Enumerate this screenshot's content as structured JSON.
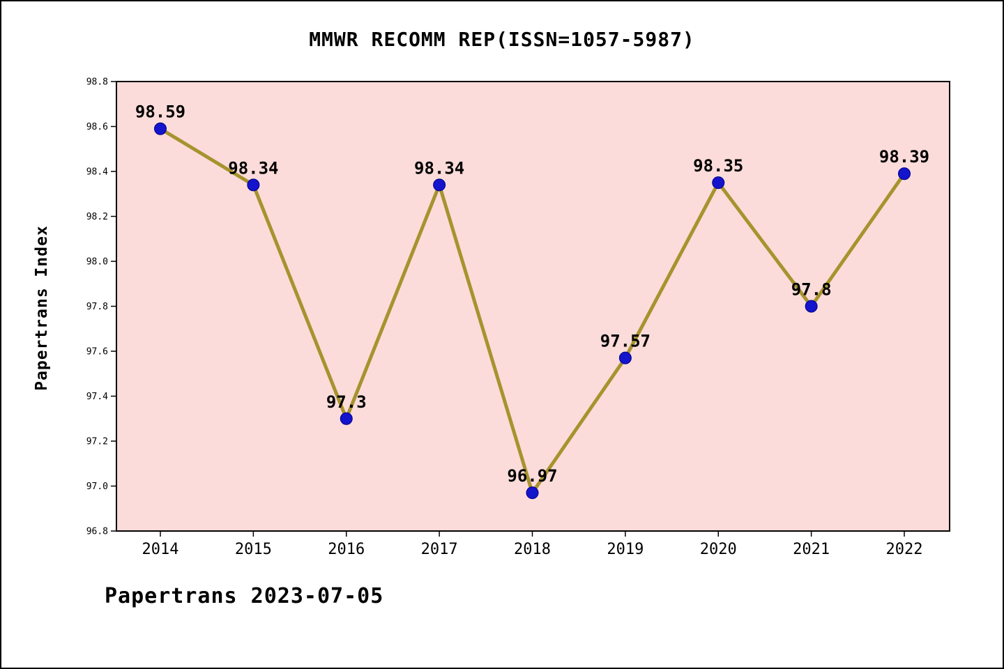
{
  "chart_data": {
    "type": "line",
    "title": "MMWR RECOMM REP(ISSN=1057-5987)",
    "ylabel": "Papertrans Index",
    "xlabel": "",
    "categories": [
      "2014",
      "2015",
      "2016",
      "2017",
      "2018",
      "2019",
      "2020",
      "2021",
      "2022"
    ],
    "values": [
      98.59,
      98.34,
      97.3,
      98.34,
      96.97,
      97.57,
      98.35,
      97.8,
      98.39
    ],
    "point_labels": [
      "98.59",
      "98.34",
      "97.3",
      "98.34",
      "96.97",
      "97.57",
      "98.35",
      "97.8",
      "98.39"
    ],
    "ylim": [
      96.8,
      98.8
    ],
    "ytick_step": 0.2,
    "ytick_labels": [
      "96.8",
      "97.0",
      "97.2",
      "97.4",
      "97.6",
      "97.8",
      "98.0",
      "98.2",
      "98.4",
      "98.6",
      "98.8"
    ],
    "grid": false,
    "legend": null,
    "colors": {
      "plot_background": "#fbdcda",
      "line": "#a6932e",
      "marker": "#1414cc",
      "marker_edge": "#00008b",
      "axis": "#000000",
      "text": "#000000",
      "figure_background": "#ffffff"
    }
  },
  "footer": {
    "text": "Papertrans 2023-07-05"
  }
}
